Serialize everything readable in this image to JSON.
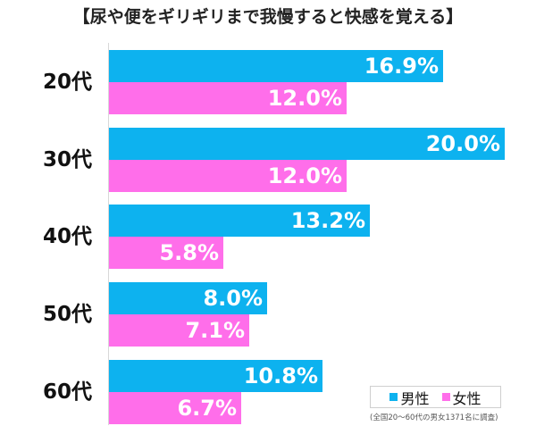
{
  "chart_data": {
    "type": "bar",
    "orientation": "horizontal",
    "title": "【尿や便をギリギリまで我慢すると快感を覚える】",
    "categories": [
      "20代",
      "30代",
      "40代",
      "50代",
      "60代"
    ],
    "series": [
      {
        "name": "男性",
        "color": "#0DB2EF",
        "values": [
          16.9,
          20.0,
          13.2,
          8.0,
          10.8
        ],
        "labels": [
          "16.9%",
          "20.0%",
          "13.2%",
          "8.0%",
          "10.8%"
        ]
      },
      {
        "name": "女性",
        "color": "#FF6EEA",
        "values": [
          12.0,
          12.0,
          5.8,
          7.1,
          6.7
        ],
        "labels": [
          "12.0%",
          "12.0%",
          "5.8%",
          "7.1%",
          "6.7%"
        ]
      }
    ],
    "xlabel": "",
    "ylabel": "",
    "xlim": [
      0,
      20
    ],
    "grid": false,
    "legend_position": "bottom-right",
    "annotation": "(全国20〜60代の男女1371名に調査)"
  },
  "legend": {
    "male": "男性",
    "female": "女性"
  },
  "footnote": "(全国20〜60代の男女1371名に調査)"
}
